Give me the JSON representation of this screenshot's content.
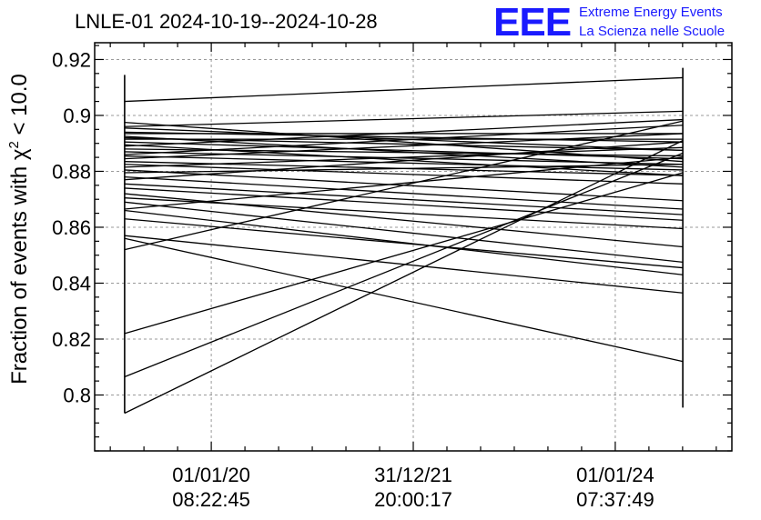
{
  "chart_data": {
    "type": "line",
    "title": "LNLE-01 2024-10-19--2024-10-28",
    "ylabel_prefix": "Fraction of events with ",
    "ylabel_chi": "χ",
    "ylabel_exp": "2",
    "ylabel_suffix": " < 10.0",
    "ylim": [
      0.78,
      0.926
    ],
    "yticks": [
      0.8,
      0.82,
      0.84,
      0.86,
      0.88,
      0.9,
      0.92
    ],
    "ytick_labels": [
      "0.8",
      "0.82",
      "0.84",
      "0.86",
      "0.88",
      "0.9",
      "0.92"
    ],
    "xlim": [
      0,
      1
    ],
    "xticks": [
      0.183,
      0.5,
      0.817
    ],
    "xtick_labels": [
      [
        "01/01/20",
        "08:22:45"
      ],
      [
        "31/12/21",
        "20:00:17"
      ],
      [
        "01/01/24",
        "07:37:49"
      ]
    ],
    "x_start": 0.047,
    "x_end": 0.923,
    "grid": true,
    "segments": [
      [
        0.7935,
        0.891
      ],
      [
        0.8065,
        0.8865
      ],
      [
        0.822,
        0.8795
      ],
      [
        0.852,
        0.898
      ],
      [
        0.856,
        0.812
      ],
      [
        0.857,
        0.8365
      ],
      [
        0.863,
        0.8455
      ],
      [
        0.866,
        0.843
      ],
      [
        0.8665,
        0.885
      ],
      [
        0.869,
        0.8475
      ],
      [
        0.8705,
        0.8595
      ],
      [
        0.872,
        0.853
      ],
      [
        0.874,
        0.8625
      ],
      [
        0.8755,
        0.8645
      ],
      [
        0.877,
        0.8905
      ],
      [
        0.878,
        0.8665
      ],
      [
        0.8795,
        0.8825
      ],
      [
        0.8805,
        0.8695
      ],
      [
        0.8815,
        0.8885
      ],
      [
        0.8825,
        0.8755
      ],
      [
        0.8835,
        0.8785
      ],
      [
        0.8845,
        0.8935
      ],
      [
        0.8855,
        0.8805
      ],
      [
        0.886,
        0.8965
      ],
      [
        0.887,
        0.8825
      ],
      [
        0.888,
        0.8855
      ],
      [
        0.889,
        0.8985
      ],
      [
        0.8895,
        0.8785
      ],
      [
        0.8905,
        0.8845
      ],
      [
        0.8915,
        0.8915
      ],
      [
        0.892,
        0.8875
      ],
      [
        0.8925,
        0.8815
      ],
      [
        0.8935,
        0.8935
      ],
      [
        0.894,
        0.8905
      ],
      [
        0.8955,
        0.8875
      ],
      [
        0.896,
        0.9015
      ],
      [
        0.8975,
        0.8835
      ],
      [
        0.905,
        0.9135
      ]
    ],
    "bar_left": [
      0.7935,
      0.9145
    ],
    "bar_right": [
      0.7955,
      0.917
    ]
  },
  "logo": {
    "mark": "EEE",
    "line1": "Extreme Energy Events",
    "line2": "La Scienza nelle Scuole"
  }
}
